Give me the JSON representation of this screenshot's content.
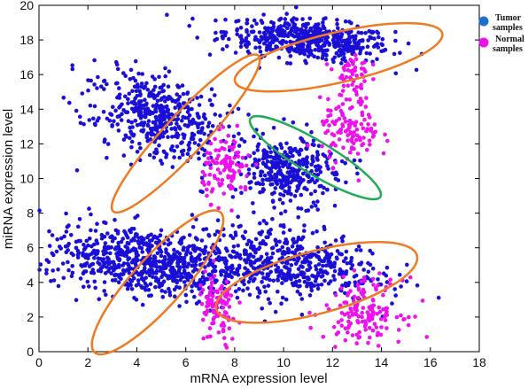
{
  "chart_data": {
    "type": "scatter",
    "title": "",
    "xlabel": "mRNA expression level",
    "ylabel": "miRNA expression level",
    "xlim": [
      0,
      18
    ],
    "ylim": [
      0,
      20
    ],
    "xticks": [
      "0",
      "2",
      "4",
      "6",
      "8",
      "10",
      "12",
      "14",
      "16",
      "18"
    ],
    "yticks": [
      "0",
      "2",
      "4",
      "6",
      "8",
      "10",
      "12",
      "14",
      "16",
      "18",
      "20"
    ],
    "grid": false,
    "legend_position": "outside-top-right",
    "series": [
      {
        "name": "Tumor samples",
        "color": "#1a0fd6",
        "clusters": [
          {
            "center": [
              11.0,
              18.0
            ],
            "spread": [
              1.7,
              0.55
            ],
            "angle_deg": -8,
            "count": 520
          },
          {
            "center": [
              4.8,
              13.6
            ],
            "spread": [
              1.5,
              1.1
            ],
            "angle_deg": -35,
            "count": 470
          },
          {
            "center": [
              10.2,
              10.4
            ],
            "spread": [
              1.0,
              1.0
            ],
            "angle_deg": 20,
            "count": 360
          },
          {
            "center": [
              4.3,
              5.2
            ],
            "spread": [
              2.0,
              0.95
            ],
            "angle_deg": -15,
            "count": 700
          },
          {
            "center": [
              10.0,
              5.2
            ],
            "spread": [
              2.0,
              0.95
            ],
            "angle_deg": -10,
            "count": 520
          }
        ]
      },
      {
        "name": "Normal samples",
        "color": "#ee11ee",
        "clusters": [
          {
            "center": [
              12.8,
              15.8
            ],
            "spread": [
              0.35,
              0.9
            ],
            "angle_deg": 0,
            "count": 60
          },
          {
            "center": [
              12.7,
              12.7
            ],
            "spread": [
              0.6,
              0.9
            ],
            "angle_deg": 0,
            "count": 110
          },
          {
            "center": [
              7.7,
              10.6
            ],
            "spread": [
              0.5,
              0.9
            ],
            "angle_deg": 0,
            "count": 110
          },
          {
            "center": [
              7.3,
              2.4
            ],
            "spread": [
              0.4,
              1.1
            ],
            "angle_deg": 0,
            "count": 100
          },
          {
            "center": [
              13.3,
              2.4
            ],
            "spread": [
              0.8,
              0.9
            ],
            "angle_deg": 0,
            "count": 150
          }
        ]
      }
    ],
    "legend": [
      {
        "label_line1": "Tumor",
        "label_line2": "samples",
        "color": "#1f6fd1"
      },
      {
        "label_line1": "Normal",
        "label_line2": "samples",
        "color": "#ee11ee"
      }
    ],
    "annotations": {
      "ellipses": [
        {
          "center": [
            12.25,
            17.0
          ],
          "rx": 4.35,
          "ry": 1.45,
          "angle_deg": -13,
          "color": "#ee7a22"
        },
        {
          "center": [
            6.0,
            12.6
          ],
          "rx": 4.35,
          "ry": 1.15,
          "angle_deg": -47,
          "color": "#ee7a22"
        },
        {
          "center": [
            11.3,
            11.2
          ],
          "rx": 3.1,
          "ry": 0.95,
          "angle_deg": 31,
          "color": "#22aa55"
        },
        {
          "center": [
            4.85,
            4.0
          ],
          "rx": 3.85,
          "ry": 1.45,
          "angle_deg": -48,
          "color": "#ee7a22"
        },
        {
          "center": [
            11.35,
            4.0
          ],
          "rx": 4.25,
          "ry": 1.8,
          "angle_deg": -15,
          "color": "#ee7a22"
        }
      ]
    }
  }
}
